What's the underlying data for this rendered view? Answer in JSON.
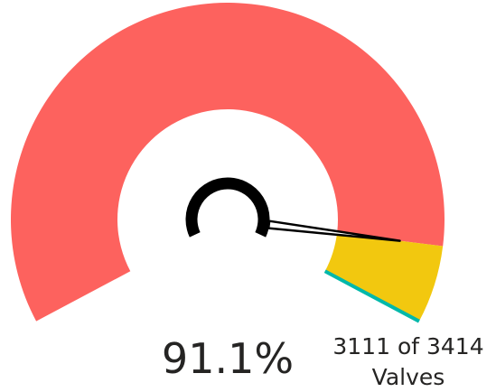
{
  "chart_data": {
    "type": "gauge",
    "values": [
      3111
    ],
    "ylim": [
      0,
      3414
    ],
    "percent": 91.1,
    "percent_label": "91.1%",
    "caption": "3111 of 3414",
    "unit": "Valves",
    "colors": {
      "value": "#fd625e",
      "remainder": "#f2c80f",
      "target": "#01b8aa"
    }
  }
}
